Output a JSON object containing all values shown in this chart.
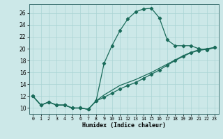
{
  "xlabel": "Humidex (Indice chaleur)",
  "bg_color": "#cce8e8",
  "grid_color": "#aad4d4",
  "line_color": "#1a6b5a",
  "xlim": [
    -0.5,
    23.5
  ],
  "ylim": [
    9,
    27.5
  ],
  "xticks": [
    0,
    1,
    2,
    3,
    4,
    5,
    6,
    7,
    8,
    9,
    10,
    11,
    12,
    13,
    14,
    15,
    16,
    17,
    18,
    19,
    20,
    21,
    22,
    23
  ],
  "yticks": [
    10,
    12,
    14,
    16,
    18,
    20,
    22,
    24,
    26
  ],
  "curve1_x": [
    0,
    1,
    2,
    3,
    4,
    5,
    6,
    7,
    8,
    9,
    10,
    11,
    12,
    13,
    14,
    15,
    16,
    17,
    18,
    19,
    20,
    21,
    22,
    23
  ],
  "curve1_y": [
    12,
    10.5,
    11,
    10.5,
    10.5,
    10,
    10,
    9.8,
    11.2,
    17.5,
    20.5,
    23,
    25,
    26.2,
    26.7,
    26.8,
    25.2,
    21.5,
    20.5,
    20.5,
    20.5,
    20.0,
    19.8,
    20.2
  ],
  "curve2_x": [
    0,
    1,
    2,
    3,
    4,
    5,
    6,
    7,
    8,
    9,
    10,
    11,
    12,
    13,
    14,
    15,
    16,
    17,
    18,
    19,
    20,
    21,
    22,
    23
  ],
  "curve2_y": [
    12,
    10.5,
    11,
    10.5,
    10.5,
    10,
    10,
    9.8,
    11.2,
    11.8,
    12.5,
    13.2,
    13.8,
    14.3,
    15.0,
    15.7,
    16.4,
    17.2,
    18.0,
    18.7,
    19.3,
    19.7,
    19.9,
    20.2
  ],
  "curve3_x": [
    0,
    1,
    2,
    3,
    4,
    5,
    6,
    7,
    8,
    9,
    10,
    11,
    12,
    13,
    14,
    15,
    16,
    17,
    18,
    19,
    20,
    21,
    22,
    23
  ],
  "curve3_y": [
    12,
    10.5,
    11,
    10.5,
    10.5,
    10,
    10,
    9.8,
    11.2,
    12.2,
    13.0,
    13.8,
    14.3,
    14.8,
    15.4,
    16.0,
    16.7,
    17.4,
    18.1,
    18.8,
    19.4,
    19.8,
    20.0,
    20.2
  ]
}
